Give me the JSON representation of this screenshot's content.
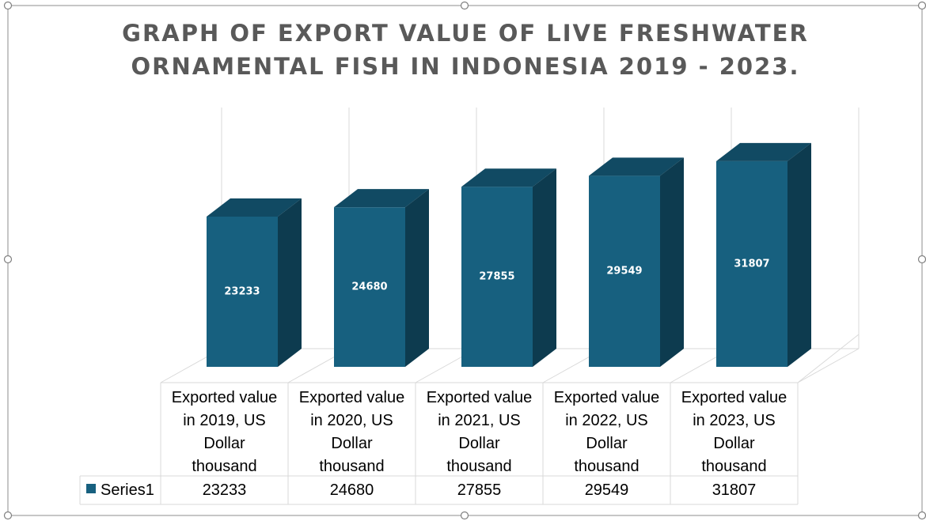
{
  "chart_data": {
    "type": "bar",
    "title_lines": [
      "GRAPH OF EXPORT VALUE OF LIVE FRESHWATER",
      "ORNAMENTAL FISH IN INDONESIA 2019 - 2023."
    ],
    "categories": [
      [
        "Exported value",
        "in 2019, US",
        "Dollar",
        "thousand"
      ],
      [
        "Exported value",
        "in 2020, US",
        "Dollar",
        "thousand"
      ],
      [
        "Exported value",
        "in 2021, US",
        "Dollar",
        "thousand"
      ],
      [
        "Exported value",
        "in 2022, US",
        "Dollar",
        "thousand"
      ],
      [
        "Exported value",
        "in 2023, US",
        "Dollar",
        "thousand"
      ]
    ],
    "series": [
      {
        "name": "Series1",
        "values": [
          23233,
          24680,
          27855,
          29549,
          31807
        ]
      }
    ],
    "data_table": true,
    "legend_in_table": true,
    "colors": {
      "bar_front": "#17607f",
      "bar_top": "#114a63",
      "bar_side": "#0d3b4f",
      "legend_key": "#17607f"
    }
  }
}
